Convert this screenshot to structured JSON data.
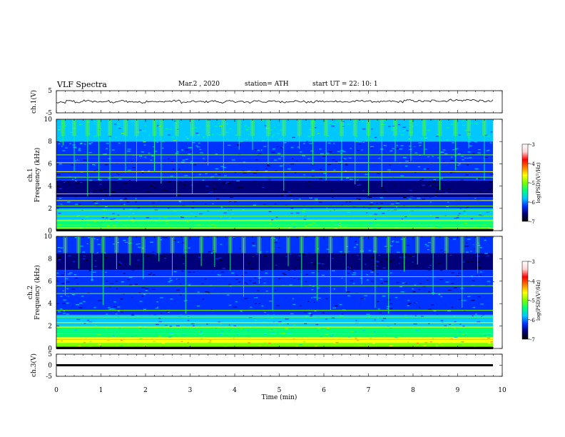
{
  "header": {
    "title": "VLF  Spectra",
    "date": "Mar.2  , 2020",
    "station": "station= ATH",
    "start": "start  UT  =   22: 10: 1"
  },
  "colors": {
    "background": "#ffffff",
    "frame": "#000000",
    "trace": "#000000",
    "colormap": [
      "#000000",
      "#00007a",
      "#0033ff",
      "#00c8ff",
      "#00ff7a",
      "#7aff00",
      "#ffff00",
      "#ff7a00",
      "#ff0000",
      "#ffd2d2",
      "#ffffff"
    ]
  },
  "chart_data": [
    {
      "type": "line",
      "ylabel": "ch.1(V)",
      "ylim": [
        -5,
        5
      ],
      "yticks": [
        "5",
        "-5"
      ],
      "xlim": [
        0,
        10
      ],
      "x_step_min": 0.2,
      "y": [
        -0.4,
        0.3,
        -0.2,
        0.5,
        -0.1,
        0.2,
        -0.3,
        0.4,
        0.0,
        -0.2,
        0.3,
        -0.1,
        0.2,
        0.4,
        -0.3,
        0.1,
        0.0,
        0.3,
        -0.2,
        0.2,
        0.1,
        -0.3,
        0.4,
        0.0,
        0.2,
        -0.1,
        0.3,
        0.1,
        -0.2,
        0.2,
        0.0,
        0.3,
        -0.1,
        0.2,
        0.4,
        0.1,
        -0.1,
        0.2,
        0.0,
        0.6,
        0.3,
        0.2,
        0.5,
        0.4,
        0.8,
        0.6,
        0.9,
        0.4,
        0.2,
        0.5
      ],
      "grid": false
    },
    {
      "type": "heatmap",
      "ylabel": "ch.1\nFrequency  (kHz)",
      "ylim": [
        0,
        10
      ],
      "yticks": [
        "0",
        "2",
        "4",
        "6",
        "8",
        "10"
      ],
      "xlim": [
        0,
        10
      ],
      "colorbar": {
        "label": "log(PSD)(V²/Hz)",
        "range": [
          -7,
          -3
        ],
        "ticks": [
          "-3",
          "-4",
          "-5",
          "-6",
          "-7"
        ]
      },
      "band_levels_by_freq_kHz": [
        {
          "f": [
            0.0,
            0.3
          ],
          "level": -5.0
        },
        {
          "f": [
            0.3,
            1.0
          ],
          "level": -5.4
        },
        {
          "f": [
            1.0,
            2.0
          ],
          "level": -6.0
        },
        {
          "f": [
            2.0,
            3.0
          ],
          "level": -6.3
        },
        {
          "f": [
            3.0,
            4.5
          ],
          "level": -6.8
        },
        {
          "f": [
            4.5,
            6.5
          ],
          "level": -6.3
        },
        {
          "f": [
            6.5,
            8.0
          ],
          "level": -6.1
        },
        {
          "f": [
            8.0,
            10.0
          ],
          "level": -5.7
        }
      ],
      "tone_lines_kHz": [
        0.5,
        0.9,
        1.3,
        1.8,
        2.2,
        2.7,
        3.3,
        4.8,
        5.3,
        6.1,
        6.8
      ],
      "sferics_min": [
        0.15,
        0.4,
        0.7,
        0.95,
        1.2,
        1.55,
        1.8,
        2.2,
        2.35,
        2.7,
        3.05,
        3.4,
        3.75,
        4.1,
        4.4,
        4.75,
        5.1,
        5.45,
        5.75,
        6.05,
        6.4,
        6.7,
        7.0,
        7.3,
        7.6,
        7.95,
        8.25,
        8.6,
        8.95,
        9.25,
        9.6
      ]
    },
    {
      "type": "heatmap",
      "ylabel": "ch.2\nFrequency  (kHz)",
      "ylim": [
        0,
        10
      ],
      "yticks": [
        "0",
        "2",
        "4",
        "6",
        "8",
        "10"
      ],
      "xlim": [
        0,
        10
      ],
      "colorbar": {
        "label": "log(PSD)(V²/Hz)",
        "range": [
          -7,
          -3
        ],
        "ticks": [
          "-3",
          "-4",
          "-5",
          "-6",
          "-7"
        ]
      },
      "band_levels_by_freq_kHz": [
        {
          "f": [
            0.0,
            0.5
          ],
          "level": -5.0
        },
        {
          "f": [
            0.5,
            1.0
          ],
          "level": -4.6
        },
        {
          "f": [
            1.0,
            2.0
          ],
          "level": -5.5
        },
        {
          "f": [
            2.0,
            3.0
          ],
          "level": -6.0
        },
        {
          "f": [
            3.0,
            5.0
          ],
          "level": -6.2
        },
        {
          "f": [
            5.0,
            7.0
          ],
          "level": -6.3
        },
        {
          "f": [
            7.0,
            8.5
          ],
          "level": -6.7
        },
        {
          "f": [
            8.5,
            10.0
          ],
          "level": -6.2
        }
      ],
      "tone_lines_kHz": [
        0.8,
        1.3,
        1.9,
        2.3,
        2.8,
        3.4,
        4.9,
        5.6,
        6.4
      ],
      "sferics_min": [
        0.2,
        0.5,
        0.8,
        1.05,
        1.35,
        1.65,
        1.95,
        2.3,
        2.6,
        2.9,
        3.25,
        3.55,
        3.9,
        4.2,
        4.55,
        4.85,
        5.2,
        5.5,
        5.85,
        6.15,
        6.5,
        6.85,
        7.15,
        7.45,
        7.8,
        8.1,
        8.45,
        8.75,
        9.1,
        9.45
      ]
    },
    {
      "type": "line",
      "ylabel": "ch.3(V)",
      "ylim": [
        -5,
        5
      ],
      "yticks": [
        "5",
        "0",
        "-5"
      ],
      "xlim": [
        0,
        10
      ],
      "constant_value": 0,
      "grid": false
    }
  ],
  "xaxis": {
    "label": "Time  (min)",
    "ticks": [
      "0",
      "1",
      "2",
      "3",
      "4",
      "5",
      "6",
      "7",
      "8",
      "9",
      "10"
    ]
  }
}
